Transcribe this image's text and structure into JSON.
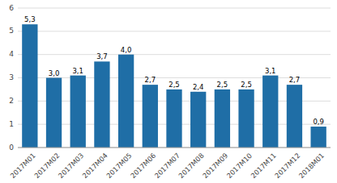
{
  "chart_data": {
    "type": "bar",
    "categories": [
      "2017M01",
      "2017M02",
      "2017M03",
      "2017M04",
      "2017M05",
      "2017M06",
      "2017M07",
      "2017M08",
      "2017M09",
      "2017M10",
      "2017M11",
      "2017M12",
      "2018M01"
    ],
    "values": [
      5.3,
      3.0,
      3.1,
      3.7,
      4.0,
      2.7,
      2.5,
      2.4,
      2.5,
      2.5,
      3.1,
      2.7,
      0.9
    ],
    "value_labels": [
      "5,3",
      "3,0",
      "3,1",
      "3,7",
      "4,0",
      "2,7",
      "2,5",
      "2,4",
      "2,5",
      "2,5",
      "3,1",
      "2,7",
      "0,9"
    ],
    "data_labels": true,
    "color": "#1F6EA6",
    "ylim": [
      0,
      6
    ],
    "yticks": [
      0,
      1,
      2,
      3,
      4,
      5,
      6
    ],
    "grid": true
  }
}
